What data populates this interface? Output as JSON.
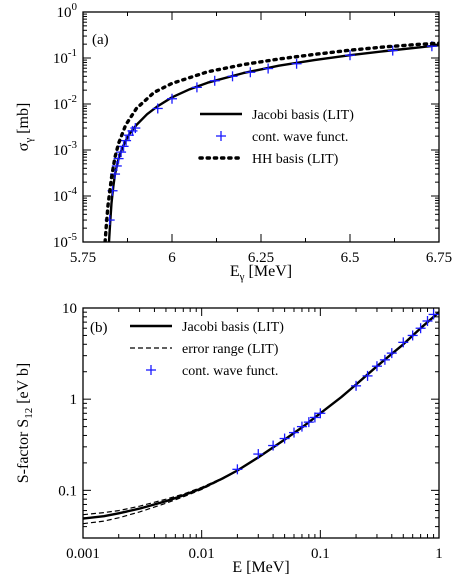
{
  "chart_data": [
    {
      "type": "line",
      "panel_label": "(a)",
      "xlabel": "E",
      "xlabel_sub": "γ",
      "xlabel_unit": " [MeV]",
      "ylabel": "σ",
      "ylabel_sub": "γ",
      "ylabel_unit": " [mb]",
      "xlim": [
        5.75,
        6.75
      ],
      "ylim": [
        1e-05,
        1
      ],
      "yscale": "log",
      "xticks": [
        5.75,
        6.0,
        6.25,
        6.5,
        6.75
      ],
      "xtick_labels": [
        "5.75",
        "6",
        "6.25",
        "6.5",
        "6.75"
      ],
      "yticks": [
        1e-05,
        0.0001,
        0.001,
        0.01,
        0.1,
        1
      ],
      "ytick_base": "10",
      "ytick_exponents": [
        "-5",
        "-4",
        "-3",
        "-2",
        "-1",
        "0"
      ],
      "legend_position": "center-right",
      "series": [
        {
          "name": "Jacobi basis (LIT)",
          "style": "solid",
          "color": "#000000",
          "x": [
            5.823,
            5.826,
            5.83,
            5.835,
            5.84,
            5.85,
            5.86,
            5.87,
            5.88,
            5.9,
            5.93,
            5.96,
            6.0,
            6.05,
            6.1,
            6.2,
            6.3,
            6.4,
            6.5,
            6.6,
            6.7,
            6.75
          ],
          "y": [
            1e-05,
            2.5e-05,
            7e-05,
            0.00016,
            0.0003,
            0.00065,
            0.0011,
            0.0016,
            0.0022,
            0.0035,
            0.006,
            0.009,
            0.014,
            0.021,
            0.029,
            0.047,
            0.068,
            0.09,
            0.115,
            0.142,
            0.172,
            0.19
          ]
        },
        {
          "name": "cont. wave funct.",
          "style": "markers",
          "marker": "plus",
          "color": "#1a1aff",
          "x": [
            5.825,
            5.833,
            5.84,
            5.845,
            5.85,
            5.857,
            5.864,
            5.871,
            5.879,
            5.889,
            5.897,
            5.96,
            6.0,
            6.07,
            6.12,
            6.17,
            6.22,
            6.27,
            6.35,
            6.5,
            6.62,
            6.73
          ],
          "y": [
            3e-05,
            0.00013,
            0.0003,
            0.00045,
            0.00065,
            0.0009,
            0.0012,
            0.0016,
            0.0021,
            0.0026,
            0.003,
            0.008,
            0.013,
            0.023,
            0.032,
            0.04,
            0.049,
            0.059,
            0.075,
            0.115,
            0.145,
            0.18
          ]
        },
        {
          "name": "HH basis (LIT)",
          "style": "dotted",
          "color": "#000000",
          "x": [
            5.812,
            5.815,
            5.82,
            5.83,
            5.84,
            5.85,
            5.87,
            5.9,
            5.95,
            6.0,
            6.1,
            6.2,
            6.3,
            6.4,
            6.5,
            6.6,
            6.7,
            6.75
          ],
          "y": [
            1e-05,
            2e-05,
            6e-05,
            0.00025,
            0.0007,
            0.0014,
            0.0035,
            0.008,
            0.018,
            0.028,
            0.05,
            0.072,
            0.095,
            0.12,
            0.148,
            0.175,
            0.2,
            0.21
          ]
        }
      ]
    },
    {
      "type": "line",
      "panel_label": "(b)",
      "xlabel": "E [MeV]",
      "ylabel": "S-factor S",
      "ylabel_sub": "12",
      "ylabel_unit": " [eV b]",
      "xscale": "log",
      "yscale": "log",
      "xlim": [
        0.001,
        1
      ],
      "ylim": [
        0.03,
        10
      ],
      "xticks": [
        0.001,
        0.01,
        0.1,
        1
      ],
      "xtick_labels": [
        "0.001",
        "0.01",
        "0.1",
        "1"
      ],
      "yticks": [
        0.1,
        1,
        10
      ],
      "ytick_labels": [
        "0.1",
        "1",
        "10"
      ],
      "legend_position": "top-left",
      "series": [
        {
          "name": "Jacobi basis (LIT)",
          "style": "solid",
          "color": "#000000",
          "x": [
            0.001,
            0.0015,
            0.002,
            0.003,
            0.005,
            0.007,
            0.01,
            0.015,
            0.02,
            0.03,
            0.05,
            0.07,
            0.1,
            0.15,
            0.2,
            0.3,
            0.5,
            0.7,
            1.0
          ],
          "y": [
            0.049,
            0.052,
            0.056,
            0.063,
            0.076,
            0.088,
            0.105,
            0.135,
            0.165,
            0.23,
            0.36,
            0.49,
            0.7,
            1.05,
            1.45,
            2.3,
            4.0,
            6.0,
            9.0
          ]
        },
        {
          "name": "error range (LIT)",
          "style": "dashed",
          "color": "#000000",
          "x": [
            0.001,
            0.0015,
            0.002,
            0.003,
            0.005,
            0.007,
            0.01,
            0.015,
            0.02
          ],
          "y": [
            0.054,
            0.057,
            0.06,
            0.067,
            0.08,
            0.091,
            0.108,
            0.137,
            0.166
          ]
        },
        {
          "name": "",
          "style": "dashed",
          "color": "#000000",
          "x": [
            0.001,
            0.0015,
            0.002,
            0.003,
            0.005,
            0.007,
            0.01,
            0.015,
            0.02
          ],
          "y": [
            0.043,
            0.046,
            0.05,
            0.058,
            0.072,
            0.085,
            0.102,
            0.133,
            0.164
          ]
        },
        {
          "name": "cont. wave funct.",
          "style": "markers",
          "marker": "plus",
          "color": "#1a1aff",
          "x": [
            0.02,
            0.03,
            0.04,
            0.05,
            0.06,
            0.07,
            0.08,
            0.09,
            0.1,
            0.2,
            0.25,
            0.3,
            0.35,
            0.4,
            0.5,
            0.6,
            0.7,
            0.8,
            0.9
          ],
          "y": [
            0.17,
            0.25,
            0.31,
            0.37,
            0.43,
            0.5,
            0.56,
            0.63,
            0.7,
            1.4,
            1.8,
            2.3,
            2.7,
            3.2,
            4.2,
            5.0,
            6.0,
            7.2,
            8.5
          ]
        }
      ]
    }
  ]
}
